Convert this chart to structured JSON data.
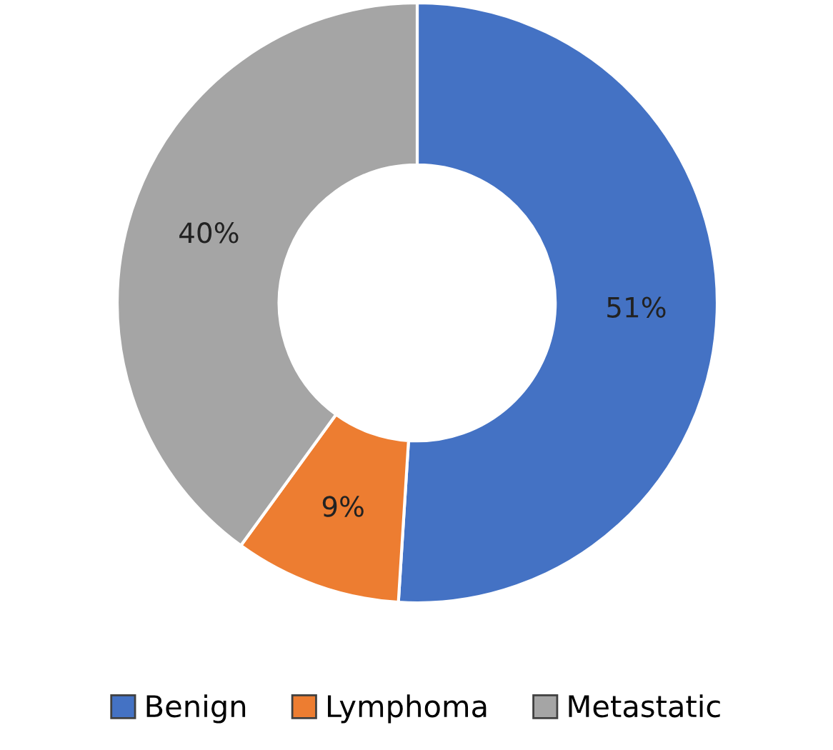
{
  "chart_data": {
    "type": "donut",
    "categories": [
      "Benign",
      "Lymphoma",
      "Metastatic"
    ],
    "values": [
      51,
      9,
      40
    ],
    "colors": [
      "#4472c4",
      "#ed7d31",
      "#a5a5a5"
    ],
    "value_labels": [
      "51%",
      "9%",
      "40%"
    ],
    "legend": "bottom"
  }
}
